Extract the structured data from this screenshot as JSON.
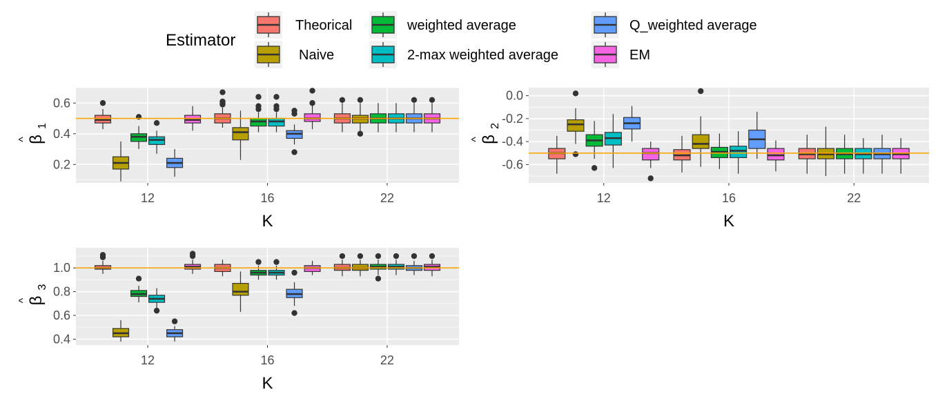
{
  "legend": {
    "title": "Estimator",
    "entries": [
      {
        "label": "Theorical",
        "color": "#F8766D"
      },
      {
        "label": "Naive",
        "color": "#B79F00"
      },
      {
        "label": "weighted average",
        "color": "#00BA38"
      },
      {
        "label": "2-max weighted average",
        "color": "#00BFC4"
      },
      {
        "label": "Q_weighted average",
        "color": "#619CFF"
      },
      {
        "label": "EM",
        "color": "#F564E3"
      }
    ]
  },
  "chart_data": [
    {
      "type": "boxplot",
      "ylabel_symbol": "β",
      "ylabel_hat": "^",
      "ylabel_subscript": "1",
      "xlabel": "K",
      "categories": [
        "12",
        "16",
        "22"
      ],
      "ylim": [
        0.08,
        0.7
      ],
      "yticks": [
        "0.2",
        "0.4",
        "0.6"
      ],
      "reference_line": 0.5,
      "series": [
        {
          "name": "Theorical",
          "boxes": [
            {
              "q1": 0.47,
              "median": 0.49,
              "q3": 0.52,
              "min": 0.43,
              "max": 0.56,
              "outliers": [
                0.6
              ]
            },
            {
              "q1": 0.47,
              "median": 0.5,
              "q3": 0.53,
              "min": 0.44,
              "max": 0.57,
              "outliers": [
                0.59,
                0.6,
                0.61,
                0.67
              ]
            },
            {
              "q1": 0.47,
              "median": 0.5,
              "q3": 0.53,
              "min": 0.41,
              "max": 0.6,
              "outliers": [
                0.62
              ]
            }
          ]
        },
        {
          "name": "Naive",
          "boxes": [
            {
              "q1": 0.17,
              "median": 0.21,
              "q3": 0.25,
              "min": 0.09,
              "max": 0.35,
              "outliers": []
            },
            {
              "q1": 0.36,
              "median": 0.41,
              "q3": 0.44,
              "min": 0.23,
              "max": 0.55,
              "outliers": []
            },
            {
              "q1": 0.47,
              "median": 0.5,
              "q3": 0.52,
              "min": 0.4,
              "max": 0.6,
              "outliers": [
                0.62,
                0.4
              ]
            }
          ]
        },
        {
          "name": "weighted average",
          "boxes": [
            {
              "q1": 0.35,
              "median": 0.38,
              "q3": 0.4,
              "min": 0.3,
              "max": 0.45,
              "outliers": [
                0.51
              ]
            },
            {
              "q1": 0.45,
              "median": 0.48,
              "q3": 0.5,
              "min": 0.41,
              "max": 0.54,
              "outliers": [
                0.56,
                0.58,
                0.64
              ]
            },
            {
              "q1": 0.47,
              "median": 0.5,
              "q3": 0.53,
              "min": 0.41,
              "max": 0.6,
              "outliers": []
            }
          ]
        },
        {
          "name": "2-max weighted average",
          "boxes": [
            {
              "q1": 0.33,
              "median": 0.36,
              "q3": 0.38,
              "min": 0.27,
              "max": 0.42,
              "outliers": [
                0.47
              ]
            },
            {
              "q1": 0.45,
              "median": 0.48,
              "q3": 0.5,
              "min": 0.41,
              "max": 0.54,
              "outliers": [
                0.56,
                0.58,
                0.64
              ]
            },
            {
              "q1": 0.47,
              "median": 0.5,
              "q3": 0.53,
              "min": 0.41,
              "max": 0.6,
              "outliers": []
            }
          ]
        },
        {
          "name": "Q_weighted average",
          "boxes": [
            {
              "q1": 0.18,
              "median": 0.21,
              "q3": 0.24,
              "min": 0.12,
              "max": 0.3,
              "outliers": []
            },
            {
              "q1": 0.37,
              "median": 0.4,
              "q3": 0.42,
              "min": 0.33,
              "max": 0.46,
              "outliers": [
                0.28,
                0.53,
                0.55
              ]
            },
            {
              "q1": 0.47,
              "median": 0.5,
              "q3": 0.53,
              "min": 0.41,
              "max": 0.6,
              "outliers": [
                0.62
              ]
            }
          ]
        },
        {
          "name": "EM",
          "boxes": [
            {
              "q1": 0.47,
              "median": 0.49,
              "q3": 0.52,
              "min": 0.42,
              "max": 0.58,
              "outliers": []
            },
            {
              "q1": 0.48,
              "median": 0.5,
              "q3": 0.53,
              "min": 0.43,
              "max": 0.59,
              "outliers": [
                0.6,
                0.68
              ]
            },
            {
              "q1": 0.47,
              "median": 0.5,
              "q3": 0.53,
              "min": 0.41,
              "max": 0.6,
              "outliers": [
                0.62
              ]
            }
          ]
        }
      ]
    },
    {
      "type": "boxplot",
      "ylabel_symbol": "β",
      "ylabel_hat": "^",
      "ylabel_subscript": "2",
      "xlabel": "K",
      "categories": [
        "12",
        "16",
        "22"
      ],
      "ylim": [
        -0.76,
        0.07
      ],
      "yticks": [
        "0.0",
        "-0.2",
        "-0.4",
        "-0.6"
      ],
      "reference_line": -0.5,
      "series": [
        {
          "name": "Theorical",
          "boxes": [
            {
              "q1": -0.55,
              "median": -0.5,
              "q3": -0.46,
              "min": -0.68,
              "max": -0.35,
              "outliers": []
            },
            {
              "q1": -0.56,
              "median": -0.52,
              "q3": -0.47,
              "min": -0.67,
              "max": -0.35,
              "outliers": []
            },
            {
              "q1": -0.55,
              "median": -0.51,
              "q3": -0.46,
              "min": -0.68,
              "max": -0.34,
              "outliers": []
            }
          ]
        },
        {
          "name": "Naive",
          "boxes": [
            {
              "q1": -0.31,
              "median": -0.25,
              "q3": -0.21,
              "min": -0.42,
              "max": -0.11,
              "outliers": [
                0.02,
                -0.51
              ]
            },
            {
              "q1": -0.46,
              "median": -0.42,
              "q3": -0.34,
              "min": -0.62,
              "max": -0.18,
              "outliers": [
                0.04
              ]
            },
            {
              "q1": -0.55,
              "median": -0.51,
              "q3": -0.46,
              "min": -0.7,
              "max": -0.27,
              "outliers": []
            }
          ]
        },
        {
          "name": "weighted average",
          "boxes": [
            {
              "q1": -0.44,
              "median": -0.39,
              "q3": -0.34,
              "min": -0.55,
              "max": -0.22,
              "outliers": [
                -0.63
              ]
            },
            {
              "q1": -0.54,
              "median": -0.49,
              "q3": -0.45,
              "min": -0.64,
              "max": -0.33,
              "outliers": []
            },
            {
              "q1": -0.55,
              "median": -0.51,
              "q3": -0.46,
              "min": -0.68,
              "max": -0.34,
              "outliers": []
            }
          ]
        },
        {
          "name": "2-max weighted average",
          "boxes": [
            {
              "q1": -0.43,
              "median": -0.37,
              "q3": -0.32,
              "min": -0.63,
              "max": -0.16,
              "outliers": []
            },
            {
              "q1": -0.54,
              "median": -0.48,
              "q3": -0.44,
              "min": -0.68,
              "max": -0.31,
              "outliers": []
            },
            {
              "q1": -0.55,
              "median": -0.51,
              "q3": -0.46,
              "min": -0.68,
              "max": -0.37,
              "outliers": []
            }
          ]
        },
        {
          "name": "Q_weighted average",
          "boxes": [
            {
              "q1": -0.29,
              "median": -0.24,
              "q3": -0.19,
              "min": -0.4,
              "max": -0.09,
              "outliers": []
            },
            {
              "q1": -0.46,
              "median": -0.38,
              "q3": -0.3,
              "min": -0.55,
              "max": -0.14,
              "outliers": []
            },
            {
              "q1": -0.55,
              "median": -0.51,
              "q3": -0.46,
              "min": -0.68,
              "max": -0.34,
              "outliers": []
            }
          ]
        },
        {
          "name": "EM",
          "boxes": [
            {
              "q1": -0.56,
              "median": -0.5,
              "q3": -0.46,
              "min": -0.63,
              "max": -0.4,
              "outliers": [
                -0.72
              ]
            },
            {
              "q1": -0.56,
              "median": -0.52,
              "q3": -0.46,
              "min": -0.66,
              "max": -0.39,
              "outliers": []
            },
            {
              "q1": -0.55,
              "median": -0.51,
              "q3": -0.46,
              "min": -0.68,
              "max": -0.37,
              "outliers": []
            }
          ]
        }
      ]
    },
    {
      "type": "boxplot",
      "ylabel_symbol": "β",
      "ylabel_hat": "^",
      "ylabel_subscript": "3",
      "xlabel": "K",
      "categories": [
        "12",
        "16",
        "22"
      ],
      "ylim": [
        0.35,
        1.17
      ],
      "yticks": [
        "0.4",
        "0.6",
        "0.8",
        "1.0"
      ],
      "reference_line": 1.0,
      "series": [
        {
          "name": "Theorical",
          "boxes": [
            {
              "q1": 0.99,
              "median": 1.0,
              "q3": 1.02,
              "min": 0.95,
              "max": 1.06,
              "outliers": [
                1.09,
                1.11
              ]
            },
            {
              "q1": 0.97,
              "median": 1.0,
              "q3": 1.03,
              "min": 0.93,
              "max": 1.07,
              "outliers": []
            },
            {
              "q1": 0.98,
              "median": 1.0,
              "q3": 1.03,
              "min": 0.93,
              "max": 1.07,
              "outliers": [
                1.1
              ]
            }
          ]
        },
        {
          "name": "Naive",
          "boxes": [
            {
              "q1": 0.42,
              "median": 0.45,
              "q3": 0.49,
              "min": 0.38,
              "max": 0.56,
              "outliers": []
            },
            {
              "q1": 0.77,
              "median": 0.8,
              "q3": 0.87,
              "min": 0.63,
              "max": 0.97,
              "outliers": []
            },
            {
              "q1": 0.98,
              "median": 1.0,
              "q3": 1.03,
              "min": 0.93,
              "max": 1.07,
              "outliers": [
                1.1
              ]
            }
          ]
        },
        {
          "name": "weighted average",
          "boxes": [
            {
              "q1": 0.76,
              "median": 0.78,
              "q3": 0.81,
              "min": 0.71,
              "max": 0.85,
              "outliers": [
                0.91
              ]
            },
            {
              "q1": 0.94,
              "median": 0.96,
              "q3": 0.98,
              "min": 0.9,
              "max": 1.02,
              "outliers": [
                1.05
              ]
            },
            {
              "q1": 0.99,
              "median": 1.01,
              "q3": 1.03,
              "min": 0.94,
              "max": 1.07,
              "outliers": [
                0.91,
                1.1
              ]
            }
          ]
        },
        {
          "name": "2-max weighted average",
          "boxes": [
            {
              "q1": 0.71,
              "median": 0.74,
              "q3": 0.77,
              "min": 0.66,
              "max": 0.83,
              "outliers": [
                0.64
              ]
            },
            {
              "q1": 0.94,
              "median": 0.96,
              "q3": 0.98,
              "min": 0.9,
              "max": 1.02,
              "outliers": [
                1.05
              ]
            },
            {
              "q1": 0.99,
              "median": 1.01,
              "q3": 1.03,
              "min": 0.94,
              "max": 1.07,
              "outliers": [
                1.1
              ]
            }
          ]
        },
        {
          "name": "Q_weighted average",
          "boxes": [
            {
              "q1": 0.42,
              "median": 0.45,
              "q3": 0.48,
              "min": 0.38,
              "max": 0.51,
              "outliers": [
                0.55
              ]
            },
            {
              "q1": 0.75,
              "median": 0.78,
              "q3": 0.82,
              "min": 0.68,
              "max": 0.88,
              "outliers": [
                0.62,
                0.96
              ]
            },
            {
              "q1": 0.98,
              "median": 1.0,
              "q3": 1.02,
              "min": 0.94,
              "max": 1.06,
              "outliers": [
                1.1
              ]
            }
          ]
        },
        {
          "name": "EM",
          "boxes": [
            {
              "q1": 0.99,
              "median": 1.01,
              "q3": 1.03,
              "min": 0.95,
              "max": 1.07,
              "outliers": [
                1.1,
                1.12
              ]
            },
            {
              "q1": 0.97,
              "median": 1.0,
              "q3": 1.02,
              "min": 0.94,
              "max": 1.06,
              "outliers": []
            },
            {
              "q1": 0.98,
              "median": 1.01,
              "q3": 1.03,
              "min": 0.93,
              "max": 1.07,
              "outliers": [
                1.1
              ]
            }
          ]
        }
      ]
    }
  ]
}
